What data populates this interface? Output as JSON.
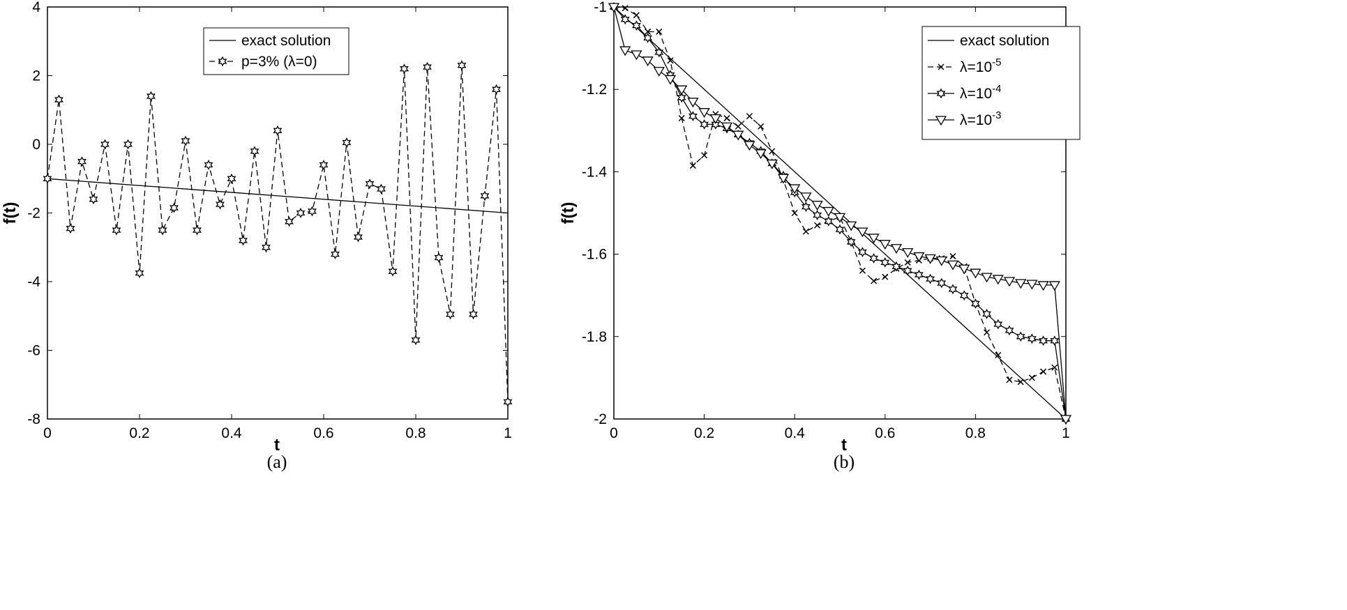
{
  "chart_data": [
    {
      "type": "line",
      "panel_caption": "(a)",
      "xlabel": "t",
      "ylabel": "f(t)",
      "xlim": [
        0,
        1
      ],
      "ylim": [
        -8,
        4
      ],
      "xticks": [
        "0",
        "0.2",
        "0.4",
        "0.6",
        "0.8",
        "1"
      ],
      "xtick_values": [
        0,
        0.2,
        0.4,
        0.6,
        0.8,
        1
      ],
      "yticks": [
        "4",
        "2",
        "0",
        "-2",
        "-4",
        "-6",
        "-8"
      ],
      "ytick_values": [
        4,
        2,
        0,
        -2,
        -4,
        -6,
        -8
      ],
      "legend_position": "top-center",
      "series": [
        {
          "name": "exact solution",
          "style": "solid",
          "marker": "none",
          "x": [
            0,
            1
          ],
          "y": [
            -1,
            -2
          ]
        },
        {
          "name": "p=3% (λ=0)",
          "style": "dashed",
          "marker": "hexagram",
          "x": [
            0,
            0.025,
            0.05,
            0.075,
            0.1,
            0.125,
            0.15,
            0.175,
            0.2,
            0.225,
            0.25,
            0.275,
            0.3,
            0.325,
            0.35,
            0.375,
            0.4,
            0.425,
            0.45,
            0.475,
            0.5,
            0.525,
            0.55,
            0.575,
            0.6,
            0.625,
            0.65,
            0.675,
            0.7,
            0.725,
            0.75,
            0.775,
            0.8,
            0.825,
            0.85,
            0.875,
            0.9,
            0.925,
            0.95,
            0.975,
            1
          ],
          "y": [
            -1,
            1.3,
            -2.45,
            -0.5,
            -1.6,
            0,
            -2.5,
            0,
            -3.75,
            1.4,
            -2.5,
            -1.85,
            0.1,
            -2.5,
            -0.6,
            -1.75,
            -1,
            -2.8,
            -0.2,
            -3,
            0.4,
            -2.25,
            -2,
            -1.95,
            -0.6,
            -3.2,
            0.05,
            -2.7,
            -1.15,
            -1.3,
            -3.7,
            2.2,
            -5.7,
            2.25,
            -3.3,
            -4.95,
            2.3,
            -4.95,
            -1.5,
            1.6,
            -7.5
          ]
        }
      ]
    },
    {
      "type": "line",
      "panel_caption": "(b)",
      "xlabel": "t",
      "ylabel": "f(t)",
      "xlim": [
        0,
        1
      ],
      "ylim": [
        -2,
        -1
      ],
      "xticks": [
        "0",
        "0.2",
        "0.4",
        "0.6",
        "0.8",
        "1"
      ],
      "xtick_values": [
        0,
        0.2,
        0.4,
        0.6,
        0.8,
        1
      ],
      "yticks": [
        "-1",
        "-1.2",
        "-1.4",
        "-1.6",
        "-1.8",
        "-2"
      ],
      "ytick_values": [
        -1,
        -1.2,
        -1.4,
        -1.6,
        -1.8,
        -2
      ],
      "legend_position": "top-right",
      "series": [
        {
          "name": "exact solution",
          "exp": "",
          "style": "solid",
          "marker": "none",
          "x": [
            0,
            1
          ],
          "y": [
            -1,
            -2
          ]
        },
        {
          "name": "λ=10",
          "exp": "-5",
          "style": "dashed",
          "marker": "x",
          "y": [
            -1,
            -1.003,
            -1.02,
            -1.06,
            -1.06,
            -1.13,
            -1.27,
            -1.385,
            -1.36,
            -1.26,
            -1.27,
            -1.29,
            -1.265,
            -1.29,
            -1.35,
            -1.42,
            -1.5,
            -1.545,
            -1.53,
            -1.52,
            -1.51,
            -1.57,
            -1.64,
            -1.665,
            -1.655,
            -1.635,
            -1.62,
            -1.615,
            -1.61,
            -1.61,
            -1.605,
            -1.63,
            -1.72,
            -1.79,
            -1.845,
            -1.905,
            -1.91,
            -1.9,
            -1.885,
            -1.875,
            -2
          ]
        },
        {
          "name": "λ=10",
          "exp": "-4",
          "style": "solid",
          "marker": "hexagram",
          "y": [
            -1,
            -1.03,
            -1.045,
            -1.075,
            -1.11,
            -1.165,
            -1.22,
            -1.265,
            -1.285,
            -1.285,
            -1.295,
            -1.31,
            -1.33,
            -1.35,
            -1.38,
            -1.41,
            -1.45,
            -1.485,
            -1.505,
            -1.52,
            -1.54,
            -1.57,
            -1.595,
            -1.61,
            -1.62,
            -1.63,
            -1.64,
            -1.65,
            -1.66,
            -1.67,
            -1.685,
            -1.7,
            -1.72,
            -1.745,
            -1.77,
            -1.785,
            -1.8,
            -1.805,
            -1.81,
            -1.81,
            -2
          ]
        },
        {
          "name": "λ=10",
          "exp": "-3",
          "style": "solid",
          "marker": "triangle-down",
          "y": [
            -1,
            -1.105,
            -1.115,
            -1.13,
            -1.155,
            -1.175,
            -1.2,
            -1.23,
            -1.255,
            -1.27,
            -1.29,
            -1.31,
            -1.335,
            -1.355,
            -1.38,
            -1.415,
            -1.44,
            -1.46,
            -1.48,
            -1.495,
            -1.51,
            -1.53,
            -1.545,
            -1.56,
            -1.575,
            -1.585,
            -1.595,
            -1.605,
            -1.61,
            -1.615,
            -1.625,
            -1.635,
            -1.645,
            -1.655,
            -1.66,
            -1.665,
            -1.67,
            -1.672,
            -1.675,
            -1.675,
            -2
          ]
        }
      ]
    }
  ]
}
